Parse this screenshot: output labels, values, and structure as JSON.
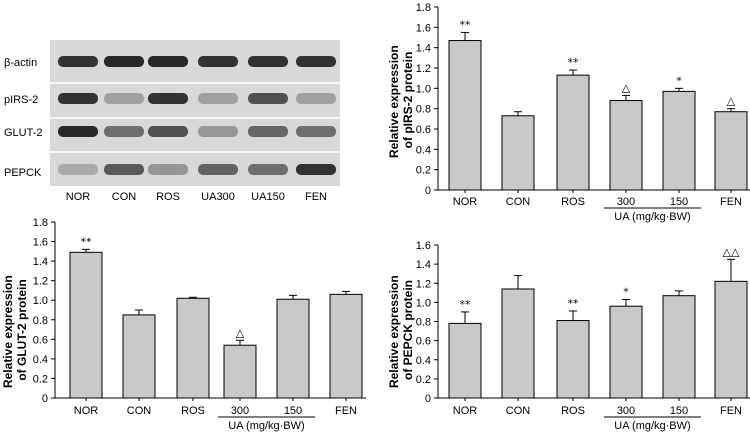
{
  "blot": {
    "row_labels": [
      "β-actin",
      "pIRS-2",
      "GLUT-2",
      "PEPCK"
    ],
    "lane_labels": [
      "NOR",
      "CON",
      "ROS",
      "UA300",
      "UA150",
      "FEN"
    ],
    "intensity": [
      [
        0.85,
        0.9,
        0.9,
        0.85,
        0.85,
        0.85
      ],
      [
        0.85,
        0.3,
        0.85,
        0.3,
        0.7,
        0.3
      ],
      [
        0.9,
        0.55,
        0.7,
        0.35,
        0.6,
        0.55
      ],
      [
        0.25,
        0.65,
        0.35,
        0.6,
        0.55,
        0.85
      ]
    ]
  },
  "chart_data": [
    {
      "type": "bar",
      "id": "pirs2",
      "ylabel_lines": [
        "Relative expression",
        "of pIRS-2 protein"
      ],
      "categories": [
        "NOR",
        "CON",
        "ROS",
        "300",
        "150",
        "FEN"
      ],
      "values": [
        1.47,
        0.73,
        1.13,
        0.88,
        0.97,
        0.77
      ],
      "errors": [
        0.08,
        0.04,
        0.05,
        0.05,
        0.03,
        0.03
      ],
      "annotations": [
        "**",
        "",
        "**",
        "△",
        "*",
        "△"
      ],
      "ylim": [
        0,
        1.8
      ],
      "yticks": [
        "0",
        "0.2",
        "0.4",
        "0.6",
        "0.8",
        "1.0",
        "1.2",
        "1.4",
        "1.6",
        "1.8"
      ],
      "group_label": "UA (mg/kg·BW)",
      "group_range": [
        3,
        4
      ]
    },
    {
      "type": "bar",
      "id": "glut2",
      "ylabel_lines": [
        "Relative expression",
        "of GLUT-2 protein"
      ],
      "categories": [
        "NOR",
        "CON",
        "ROS",
        "300",
        "150",
        "FEN"
      ],
      "values": [
        1.49,
        0.85,
        1.02,
        0.54,
        1.01,
        1.06
      ],
      "errors": [
        0.03,
        0.05,
        0.01,
        0.05,
        0.04,
        0.03
      ],
      "annotations": [
        "**",
        "",
        "",
        "△",
        "",
        ""
      ],
      "ylim": [
        0,
        1.8
      ],
      "yticks": [
        "0",
        "0.2",
        "0.4",
        "0.6",
        "0.8",
        "1.0",
        "1.2",
        "1.4",
        "1.6",
        "1.8"
      ],
      "group_label": "UA (mg/kg·BW)",
      "group_range": [
        3,
        4
      ]
    },
    {
      "type": "bar",
      "id": "pepck",
      "ylabel_lines": [
        "Relative expression",
        "of PEPCK protein"
      ],
      "categories": [
        "NOR",
        "CON",
        "ROS",
        "300",
        "150",
        "FEN"
      ],
      "values": [
        0.78,
        1.14,
        0.81,
        0.96,
        1.07,
        1.22
      ],
      "errors": [
        0.12,
        0.14,
        0.1,
        0.07,
        0.05,
        0.23
      ],
      "annotations": [
        "**",
        "",
        "**",
        "*",
        "",
        "△△"
      ],
      "ylim": [
        0,
        1.6
      ],
      "yticks": [
        "0",
        "0.2",
        "0.4",
        "0.6",
        "0.8",
        "1.0",
        "1.2",
        "1.4",
        "1.6"
      ],
      "group_label": "UA (mg/kg·BW)",
      "group_range": [
        3,
        4
      ]
    }
  ]
}
